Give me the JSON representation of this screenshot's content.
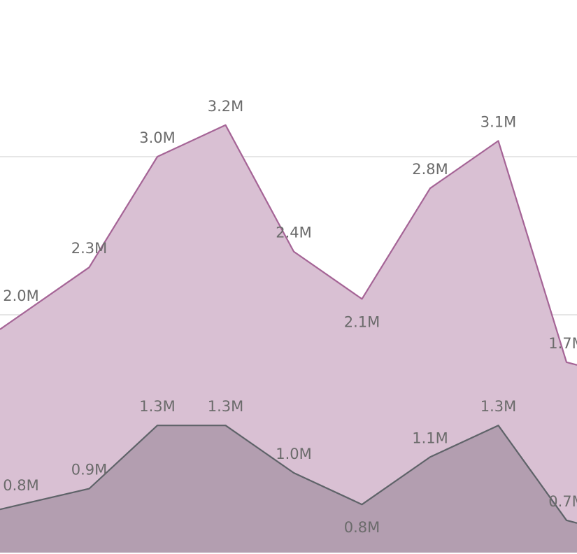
{
  "colors": {
    "upper_fill": "#d9c0d3",
    "upper_line": "#a56496",
    "lower_fill": "#b39eb0",
    "lower_line": "#5f6369",
    "label": "#6b6b6b",
    "grid": "#e6e6e6"
  },
  "chart_data": {
    "type": "area",
    "grid": true,
    "ylim": [
      0,
      3.5
    ],
    "gridlines": [
      1.0,
      2.0,
      3.0
    ],
    "x": [
      0,
      1,
      2,
      3,
      4,
      5,
      6,
      7,
      8
    ],
    "series": [
      {
        "values": [
          2.0,
          2.3,
          3.0,
          3.2,
          2.4,
          2.1,
          2.8,
          3.1,
          1.7
        ],
        "labels": [
          "2.0M",
          "2.3M",
          "3.0M",
          "3.2M",
          "2.4M",
          "2.1M",
          "2.8M",
          "3.1M",
          "1.7M"
        ]
      },
      {
        "values": [
          0.8,
          0.9,
          1.3,
          1.3,
          1.0,
          0.8,
          1.1,
          1.3,
          0.7
        ],
        "labels": [
          "0.8M",
          "0.9M",
          "1.3M",
          "1.3M",
          "1.0M",
          "0.8M",
          "1.1M",
          "1.3M",
          "0.7M"
        ]
      }
    ]
  }
}
